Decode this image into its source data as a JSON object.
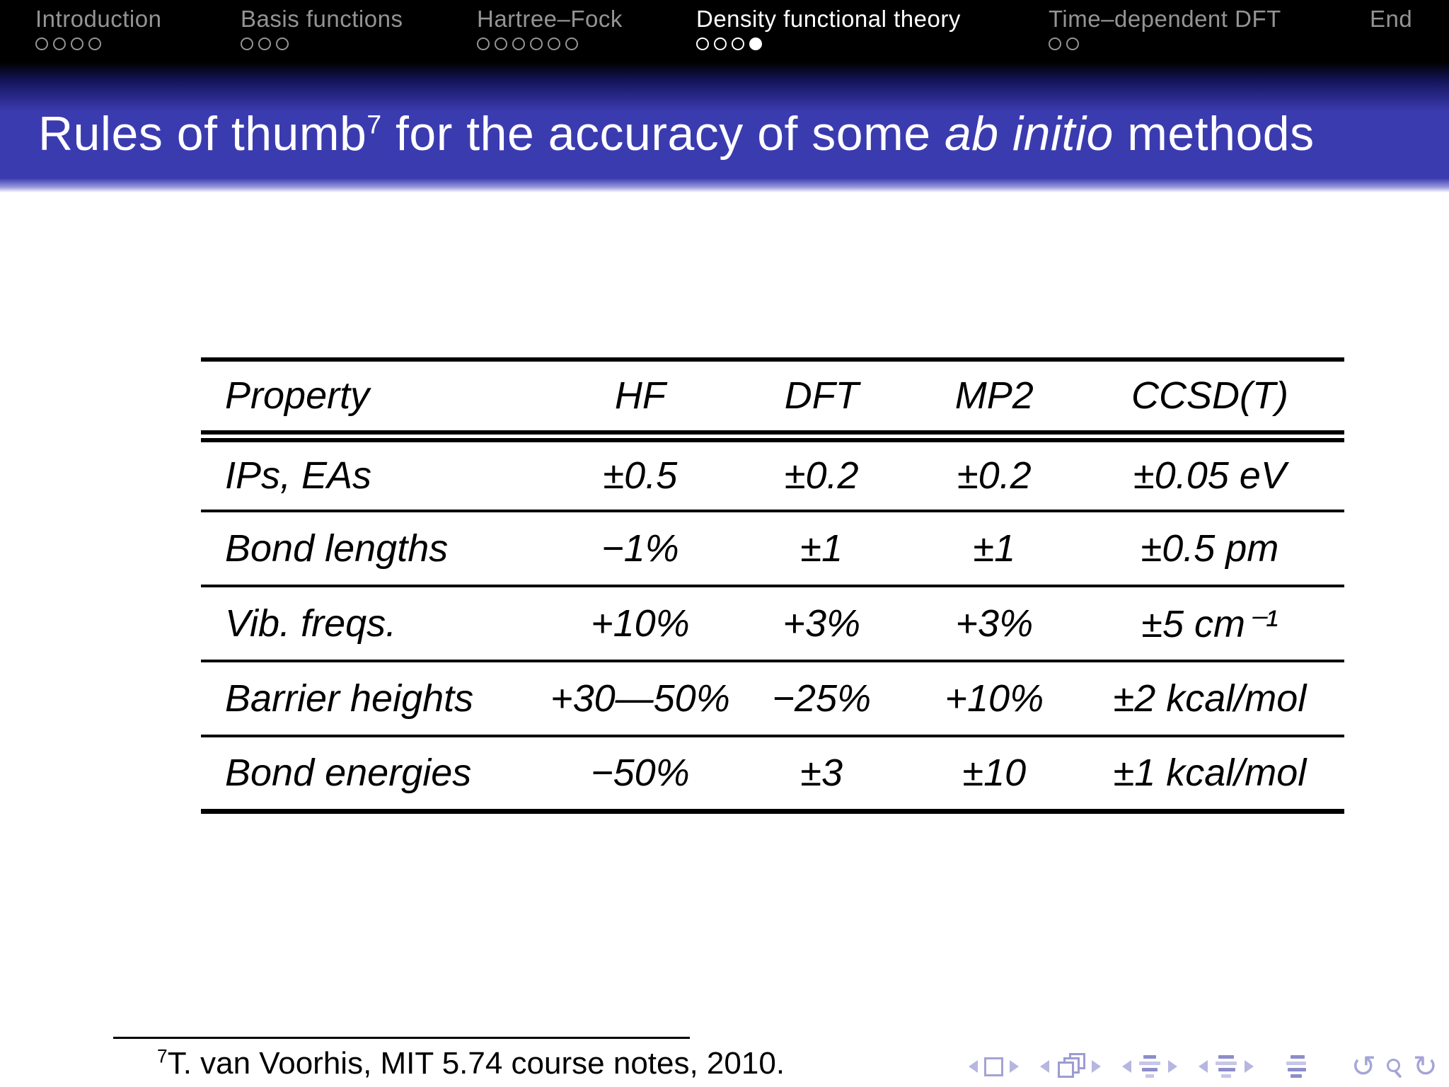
{
  "navbar": {
    "sections": [
      {
        "label": "Introduction",
        "active": false,
        "dots": [
          "open",
          "open",
          "open",
          "open"
        ]
      },
      {
        "label": "Basis functions",
        "active": false,
        "dots": [
          "open",
          "open",
          "open"
        ]
      },
      {
        "label": "Hartree–Fock",
        "active": false,
        "dots": [
          "open",
          "open",
          "open",
          "open",
          "open",
          "open"
        ]
      },
      {
        "label": "Density functional theory",
        "active": true,
        "dots": [
          "open",
          "open",
          "open",
          "filled"
        ]
      },
      {
        "label": "Time–dependent DFT",
        "active": false,
        "dots": [
          "open",
          "open"
        ]
      },
      {
        "label": "End",
        "active": false,
        "dots": []
      }
    ]
  },
  "title": {
    "part1": "Rules of thumb",
    "footnote_mark": "7",
    "part2": " for the accuracy of some ",
    "emphasis": "ab initio",
    "part3": " methods"
  },
  "table": {
    "headers": [
      "Property",
      "HF",
      "DFT",
      "MP2",
      "CCSD(T)"
    ],
    "rows": [
      [
        "IPs, EAs",
        "±0.5",
        "±0.2",
        "±0.2",
        "±0.05 eV"
      ],
      [
        "Bond lengths",
        "−1%",
        "±1",
        "±1",
        "±0.5 pm"
      ],
      [
        "Vib. freqs.",
        "+10%",
        "+3%",
        "+3%",
        "±5 cm⁻¹"
      ],
      [
        "Barrier heights",
        "+30—50%",
        "−25%",
        "+10%",
        "±2 kcal/mol"
      ],
      [
        "Bond energies",
        "−50%",
        "±3",
        "±10",
        "±1 kcal/mol"
      ]
    ]
  },
  "footnote": {
    "mark": "7",
    "text": "T. van Voorhis, MIT 5.74 course notes, 2010."
  },
  "nav_symbols": {
    "back_glyph": "↺",
    "forward_glyph": "↻"
  },
  "colors": {
    "titlebar_blue": "#3b3bb0",
    "headline_black": "#000000",
    "inactive_gray": "#949494",
    "symbol_lavender": "#a5a5d8"
  }
}
